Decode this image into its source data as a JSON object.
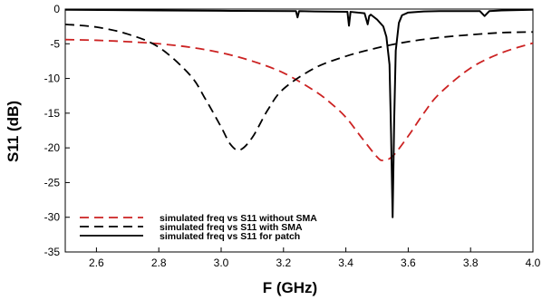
{
  "chart_data": {
    "type": "line",
    "xlabel": "F (GHz)",
    "ylabel": "S11 (dB)",
    "xlim": [
      2.5,
      4.0
    ],
    "ylim": [
      -35,
      0
    ],
    "xticks": [
      2.6,
      2.8,
      3.0,
      3.2,
      3.4,
      3.6,
      3.8,
      4.0
    ],
    "xtick_labels": [
      "2.6",
      "2.8",
      "3.0",
      "3.2",
      "3.4",
      "3.6",
      "3.8",
      "4.0"
    ],
    "yticks": [
      0,
      -5,
      -10,
      -15,
      -20,
      -25,
      -30,
      -35
    ],
    "ytick_labels": [
      "0",
      "-5",
      "-10",
      "-15",
      "-20",
      "-25",
      "-30",
      "-35"
    ],
    "grid": false,
    "legend_position": "bottom-left",
    "series": [
      {
        "name": "simulated freq vs S11 without SMA",
        "color": "#cc2222",
        "style": "dashed",
        "x": [
          2.5,
          2.6,
          2.7,
          2.8,
          2.9,
          3.0,
          3.1,
          3.2,
          3.3,
          3.35,
          3.4,
          3.45,
          3.5,
          3.52,
          3.55,
          3.6,
          3.65,
          3.7,
          3.8,
          3.9,
          4.0
        ],
        "y": [
          -4.4,
          -4.5,
          -4.7,
          -5.0,
          -5.5,
          -6.3,
          -7.5,
          -9.2,
          -11.8,
          -13.5,
          -15.6,
          -18.5,
          -21.3,
          -21.8,
          -21.2,
          -18.3,
          -15.0,
          -12.2,
          -8.5,
          -6.3,
          -4.9
        ]
      },
      {
        "name": "simulated freq vs S11 with SMA",
        "color": "#000000",
        "style": "dashed",
        "x": [
          2.5,
          2.6,
          2.7,
          2.8,
          2.9,
          2.95,
          3.0,
          3.03,
          3.06,
          3.1,
          3.15,
          3.2,
          3.3,
          3.4,
          3.5,
          3.6,
          3.7,
          3.8,
          3.9,
          4.0
        ],
        "y": [
          -2.2,
          -2.6,
          -3.6,
          -5.5,
          -9.5,
          -13.0,
          -17.0,
          -19.5,
          -20.3,
          -18.5,
          -14.5,
          -11.5,
          -8.5,
          -6.8,
          -5.6,
          -4.7,
          -4.1,
          -3.7,
          -3.4,
          -3.3
        ]
      },
      {
        "name": "simulated freq vs S11 for patch",
        "color": "#000000",
        "style": "solid",
        "x": [
          2.5,
          2.8,
          3.0,
          3.24,
          3.245,
          3.25,
          3.3,
          3.405,
          3.41,
          3.415,
          3.46,
          3.47,
          3.475,
          3.48,
          3.5,
          3.52,
          3.53,
          3.54,
          3.545,
          3.55,
          3.555,
          3.56,
          3.57,
          3.58,
          3.6,
          3.65,
          3.7,
          3.83,
          3.845,
          3.86,
          3.9,
          4.0
        ],
        "y": [
          -0.1,
          -0.2,
          -0.25,
          -0.3,
          -1.2,
          -0.3,
          -0.35,
          -0.4,
          -2.4,
          -0.4,
          -0.6,
          -2.2,
          -1.0,
          -0.8,
          -1.5,
          -2.5,
          -4.0,
          -8.0,
          -18.0,
          -30.0,
          -16.0,
          -6.0,
          -2.0,
          -0.9,
          -0.5,
          -0.35,
          -0.3,
          -0.3,
          -1.0,
          -0.3,
          -0.2,
          -0.1
        ]
      }
    ]
  }
}
